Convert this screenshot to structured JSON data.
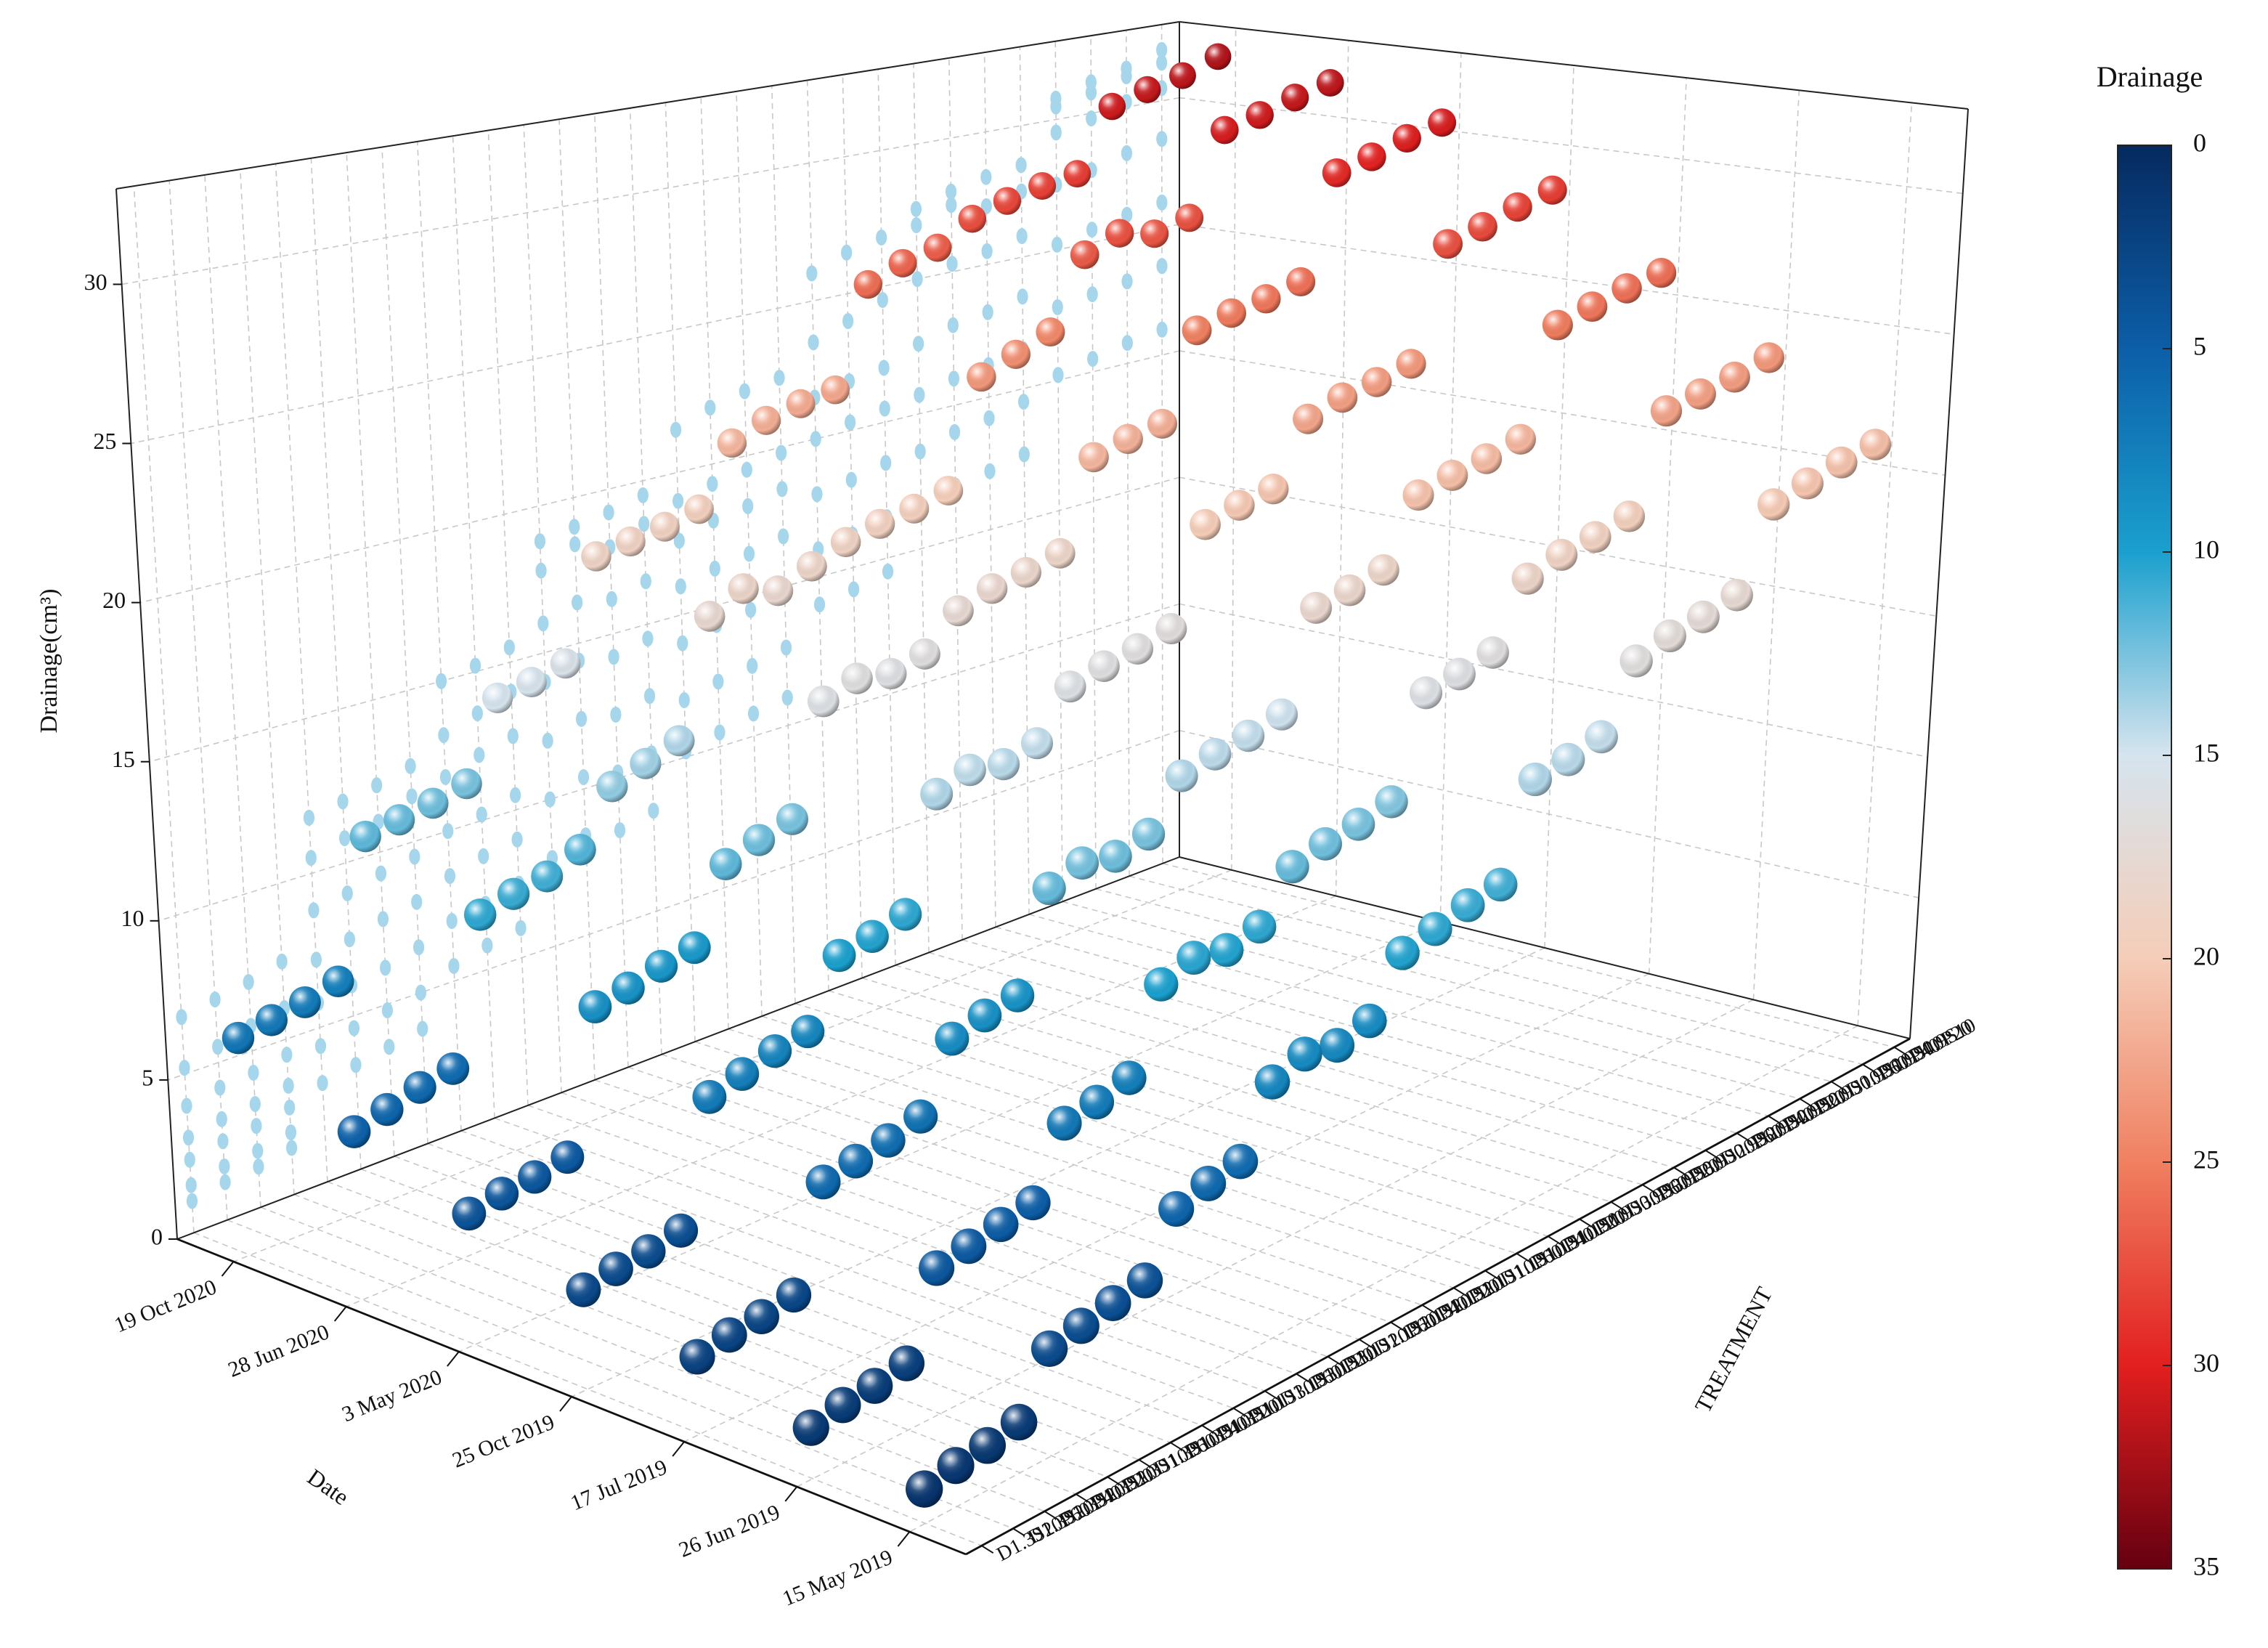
{
  "chart_data": {
    "type": "scatter3d",
    "x_label": "Date",
    "y_label": "TREATMENT",
    "z_label": "Drainage(cm³)",
    "dates": [
      "19 Oct 2020",
      "28 Jun 2020",
      "3 May 2020",
      "25 Oct 2019",
      "17 Jul 2019",
      "26 Jun 2019",
      "15 May 2019"
    ],
    "treatments": [
      "D0.9S10",
      "D0.9S10P20",
      "D0.9S10P40",
      "D0.9S10P60",
      "D0.9S20",
      "D0.9S20P20",
      "D0.9S20P40",
      "D0.9S20P60",
      "D0.9S30",
      "D0.9S30P20",
      "D0.9S30P60",
      "D1.1S10",
      "D1.1S10P20",
      "D1.1S10P40",
      "D1.1S10P60",
      "D1.1S20",
      "D1.1S20P20",
      "D1.1S20P40",
      "D1.1S20P60",
      "D1.1S30",
      "D1.1S30P20",
      "D1.1S30P60",
      "D1.3S10",
      "D1.3S10P20",
      "D1.3S10P40",
      "D1.3S10P60",
      "D1.3S20",
      "D1.3S20P20",
      "D1.3S20P40",
      "D1.3S20P60"
    ],
    "series": [
      {
        "values": [
          32.0,
          31.5,
          31.2,
          30.8,
          28.5,
          28.3,
          28.0,
          27.6,
          26.8,
          26.5,
          26.0,
          22.5,
          22.3,
          22.0,
          21.5,
          19.5,
          19.2,
          19.0,
          18.8,
          15.5,
          15.2,
          15.0,
          12.5,
          12.2,
          12.0,
          11.8,
          7.5,
          7.2,
          7.0,
          6.8
        ]
      },
      {
        "values": [
          31.5,
          31.2,
          30.8,
          30.5,
          27.5,
          27.2,
          27.5,
          27.0,
          24.5,
          24.0,
          23.5,
          19.8,
          19.5,
          19.3,
          19.0,
          18.5,
          18.0,
          18.4,
          17.8,
          14.0,
          13.6,
          13.2,
          11.5,
          11.0,
          10.8,
          10.5,
          6.0,
          5.8,
          5.5,
          5.2
        ]
      },
      {
        "values": [
          30.5,
          30.2,
          29.8,
          29.5,
          25.8,
          25.5,
          25.3,
          25.0,
          22.0,
          21.8,
          21.5,
          18.5,
          18.2,
          18.0,
          17.6,
          16.5,
          16.2,
          16.4,
          16.0,
          12.5,
          12.2,
          11.8,
          9.5,
          9.3,
          9.0,
          8.8,
          4.5,
          4.3,
          4.2,
          4.0
        ]
      },
      {
        "values": [
          28.5,
          28.2,
          27.8,
          27.5,
          23.5,
          23.2,
          23.0,
          22.6,
          20.5,
          20.3,
          20.0,
          16.8,
          16.5,
          16.3,
          16.0,
          14.5,
          14.2,
          14.4,
          14.0,
          10.5,
          10.2,
          10.0,
          8.0,
          7.8,
          7.5,
          7.2,
          3.5,
          3.3,
          3.2,
          3.0
        ]
      },
      {
        "values": [
          26.0,
          25.8,
          25.5,
          25.2,
          21.5,
          21.2,
          21.0,
          20.7,
          18.5,
          18.2,
          18.0,
          14.8,
          14.5,
          14.3,
          14.0,
          12.5,
          12.2,
          12.4,
          12.0,
          9.0,
          8.8,
          8.5,
          6.5,
          6.2,
          6.0,
          5.8,
          2.8,
          2.6,
          2.5,
          2.3
        ]
      },
      {
        "values": [
          23.5,
          23.2,
          23.0,
          22.8,
          19.5,
          19.2,
          19.0,
          18.6,
          16.5,
          16.2,
          16.0,
          12.8,
          12.5,
          12.3,
          12.0,
          10.5,
          10.2,
          10.4,
          10.0,
          7.5,
          7.2,
          7.0,
          5.0,
          4.8,
          4.6,
          4.4,
          2.0,
          1.8,
          1.7,
          1.5
        ]
      },
      {
        "values": [
          21.0,
          20.8,
          20.5,
          20.2,
          17.5,
          17.2,
          17.0,
          16.6,
          14.5,
          14.2,
          14.0,
          11.0,
          10.8,
          10.5,
          10.2,
          8.5,
          8.2,
          8.4,
          8.0,
          6.0,
          5.8,
          5.5,
          3.8,
          3.6,
          3.4,
          3.2,
          1.5,
          1.3,
          1.2,
          1.0
        ]
      }
    ],
    "zlim": [
      0,
      33
    ],
    "zticks": [
      0,
      5,
      10,
      15,
      20,
      25,
      30
    ],
    "grid": true,
    "projection_color": "#a6d6ec",
    "colorbar": {
      "title": "Drainage",
      "lim": [
        0,
        35
      ],
      "ticks": [
        0,
        5,
        10,
        15,
        20,
        25,
        30,
        35
      ],
      "reversed": true,
      "colors": [
        "#062a5f",
        "#0c5ea8",
        "#1aa0ce",
        "#d6e4ee",
        "#f5cdb8",
        "#f08060",
        "#e21f1f",
        "#650010"
      ]
    }
  }
}
